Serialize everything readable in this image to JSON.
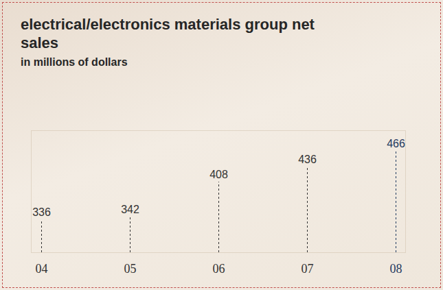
{
  "chart_data": {
    "type": "lollipop",
    "title": "electrical/electronics materials group net sales",
    "subtitle": "in millions of dollars",
    "categories": [
      "04",
      "05",
      "06",
      "07",
      "08"
    ],
    "values": [
      336,
      342,
      408,
      436,
      466
    ],
    "colors": [
      "#333333",
      "#333333",
      "#333333",
      "#333333",
      "#1f3a5f"
    ],
    "ylim": [
      275,
      505
    ],
    "yticks": [],
    "tick_labels": "x",
    "data_labels": true,
    "line_style": "dashed"
  }
}
